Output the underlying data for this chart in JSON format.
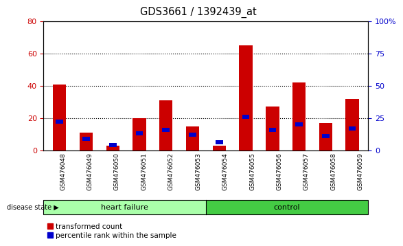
{
  "title": "GDS3661 / 1392439_at",
  "samples": [
    "GSM476048",
    "GSM476049",
    "GSM476050",
    "GSM476051",
    "GSM476052",
    "GSM476053",
    "GSM476054",
    "GSM476055",
    "GSM476056",
    "GSM476057",
    "GSM476058",
    "GSM476059"
  ],
  "red_values": [
    41,
    11,
    3,
    20,
    31,
    15,
    3,
    65,
    27,
    42,
    17,
    32
  ],
  "blue_values": [
    22,
    9,
    4,
    13,
    16,
    12,
    6,
    26,
    16,
    20,
    11,
    17
  ],
  "hf_color": "#AAFFAA",
  "ctrl_color": "#44CC44",
  "red_color": "#CC0000",
  "blue_color": "#0000CC",
  "left_ylim": [
    0,
    80
  ],
  "right_ylim": [
    0,
    100
  ],
  "left_yticks": [
    0,
    20,
    40,
    60,
    80
  ],
  "right_yticks": [
    0,
    25,
    50,
    75,
    100
  ],
  "right_yticklabels": [
    "0",
    "25",
    "50",
    "75",
    "100%"
  ],
  "grid_values": [
    20,
    40,
    60
  ],
  "bar_width": 0.5,
  "legend_red": "transformed count",
  "legend_blue": "percentile rank within the sample"
}
